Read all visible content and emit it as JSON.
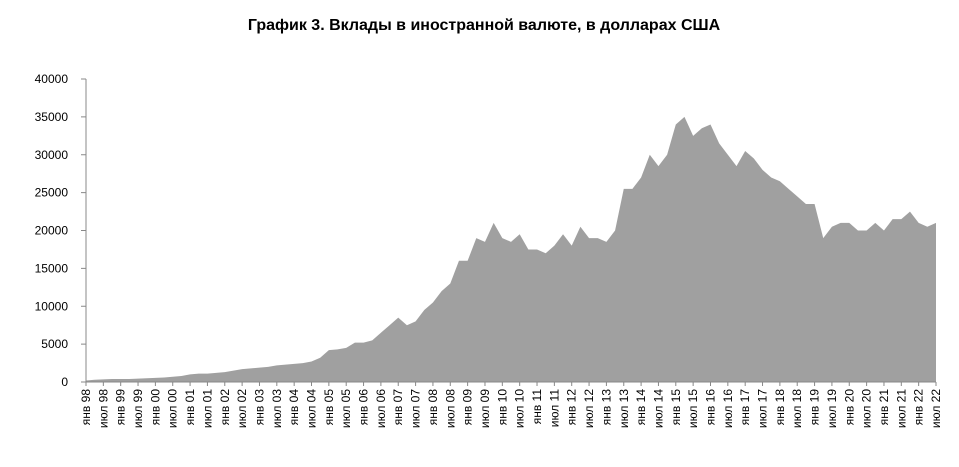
{
  "chart_data": {
    "type": "area",
    "title": "График 3. Вклады в иностранной валюте, в долларах США",
    "categories": [
      "янв 98",
      null,
      "июл 98",
      null,
      "янв 99",
      null,
      "июл 99",
      null,
      "янв 00",
      null,
      "июл 00",
      null,
      "янв 01",
      null,
      "июл 01",
      null,
      "янв 02",
      null,
      "июл 02",
      null,
      "янв 03",
      null,
      "июл 03",
      null,
      "янв 04",
      null,
      "июл 04",
      null,
      "янв 05",
      null,
      "июл 05",
      null,
      "янв 06",
      null,
      "июл 06",
      null,
      "янв 07",
      null,
      "июл 07",
      null,
      "янв 08",
      null,
      "июл 08",
      null,
      "янв 09",
      null,
      "июл 09",
      null,
      "янв 10",
      null,
      "июл 10",
      null,
      "янв 11",
      null,
      "июл 11",
      null,
      "янв 12",
      null,
      "июл 12",
      null,
      "янв 13",
      null,
      "июл 13",
      null,
      "янв 14",
      null,
      "июл 14",
      null,
      "янв 15",
      null,
      "июл 15",
      null,
      "янв 16",
      null,
      "июл 16",
      null,
      "янв 17",
      null,
      "июл 17",
      null,
      "янв 18",
      null,
      "июл 18",
      null,
      "янв 19",
      null,
      "июл 19",
      null,
      "янв 20",
      null,
      "июл 20",
      null,
      "янв 21",
      null,
      "июл 21",
      null,
      "янв 22",
      null,
      "июл 22"
    ],
    "values": [
      200,
      300,
      350,
      400,
      400,
      400,
      450,
      500,
      550,
      600,
      700,
      800,
      1000,
      1100,
      1100,
      1200,
      1300,
      1500,
      1700,
      1800,
      1900,
      2000,
      2200,
      2300,
      2400,
      2500,
      2700,
      3200,
      4200,
      4300,
      4500,
      5200,
      5200,
      5500,
      6500,
      7500,
      8500,
      7500,
      8000,
      9500,
      10500,
      12000,
      13000,
      16000,
      16000,
      19000,
      18500,
      21000,
      19000,
      18500,
      19500,
      17500,
      17500,
      17000,
      18000,
      19500,
      18000,
      20500,
      19000,
      19000,
      18500,
      20000,
      25500,
      25500,
      27000,
      30000,
      28500,
      30000,
      34000,
      35000,
      32500,
      33500,
      34000,
      31500,
      30000,
      28500,
      30500,
      29500,
      28000,
      27000,
      26500,
      25500,
      24500,
      23500,
      23500,
      19000,
      20500,
      21000,
      21000,
      20000,
      20000,
      21000,
      20000,
      21500,
      21500,
      22500,
      21000,
      20500,
      21000
    ],
    "color": "#a0a0a0",
    "ylim": [
      0,
      40000
    ],
    "yticks": [
      0,
      5000,
      10000,
      15000,
      20000,
      25000,
      30000,
      35000,
      40000
    ]
  }
}
